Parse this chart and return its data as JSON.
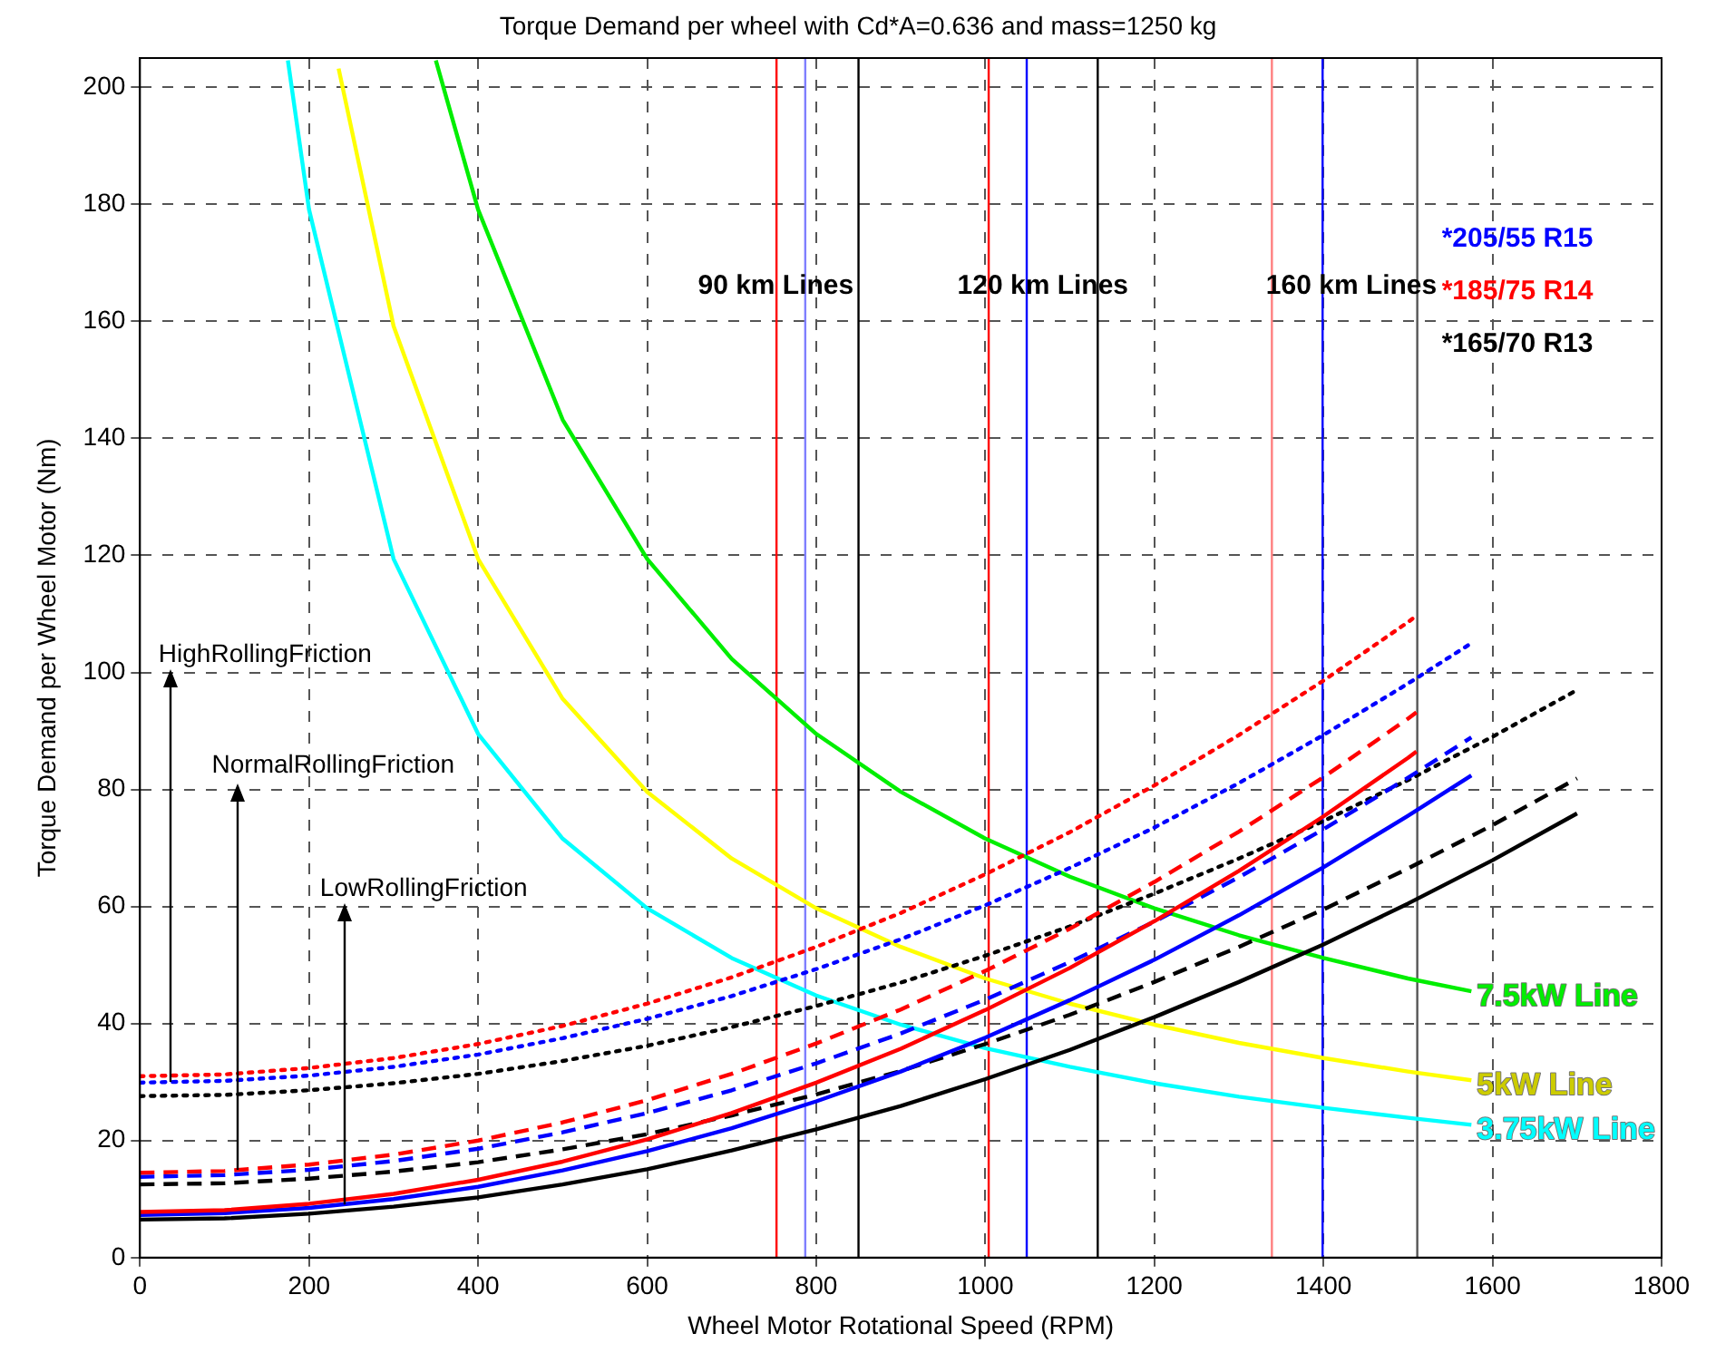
{
  "chart_data": {
    "type": "line",
    "title": "Torque Demand per wheel with Cd*A=0.636 and mass=1250 kg",
    "xlabel": "Wheel Motor Rotational Speed (RPM)",
    "ylabel": "Torque Demand per Wheel Motor (Nm)",
    "xlim": [
      0,
      1800
    ],
    "ylim": [
      0,
      205
    ],
    "xticks": [
      0,
      200,
      400,
      600,
      800,
      1000,
      1200,
      1400,
      1600,
      1800
    ],
    "yticks": [
      0,
      20,
      40,
      60,
      80,
      100,
      120,
      140,
      160,
      180,
      200
    ],
    "grid": true,
    "legend": false,
    "marker": "none",
    "series": [
      {
        "color": "#ff0000",
        "line_style": "dotted",
        "x": [
          0,
          100,
          200,
          300,
          400,
          500,
          600,
          700,
          800,
          900,
          1000,
          1100,
          1200,
          1300,
          1400,
          1500,
          1510
        ],
        "values": [
          31,
          31.3,
          32.4,
          34.1,
          36.5,
          39.6,
          43.4,
          47.9,
          53.1,
          58.9,
          65.5,
          72.7,
          80.7,
          89.3,
          98.6,
          108.6,
          109.7
        ]
      },
      {
        "color": "#ff0000",
        "line_style": "dashed",
        "x": [
          0,
          100,
          200,
          300,
          400,
          500,
          600,
          700,
          800,
          900,
          1000,
          1100,
          1200,
          1300,
          1400,
          1500,
          1510
        ],
        "values": [
          14.5,
          14.8,
          15.9,
          17.6,
          20,
          23.1,
          26.9,
          31.4,
          36.6,
          42.4,
          49,
          56.2,
          64.2,
          72.8,
          82.1,
          92.1,
          93.2
        ]
      },
      {
        "color": "#ff0000",
        "line_style": "solid",
        "x": [
          0,
          100,
          200,
          300,
          400,
          500,
          600,
          700,
          800,
          900,
          1000,
          1100,
          1200,
          1300,
          1400,
          1500,
          1510
        ],
        "values": [
          7.8,
          8.1,
          9.2,
          10.9,
          13.3,
          16.4,
          20.2,
          24.7,
          29.9,
          35.7,
          42.3,
          49.5,
          57.5,
          66.1,
          75.4,
          85.4,
          86.5
        ]
      },
      {
        "color": "#0000ff",
        "line_style": "dotted",
        "x": [
          0,
          100,
          200,
          300,
          400,
          500,
          600,
          700,
          800,
          900,
          1000,
          1100,
          1200,
          1300,
          1400,
          1500,
          1575
        ],
        "values": [
          29.9,
          30.2,
          31.1,
          32.6,
          34.7,
          37.5,
          40.8,
          44.7,
          49.3,
          54.4,
          60.2,
          66.6,
          73.5,
          81.1,
          89.3,
          98.1,
          105
        ]
      },
      {
        "color": "#0000ff",
        "line_style": "dashed",
        "x": [
          0,
          100,
          200,
          300,
          400,
          500,
          600,
          700,
          800,
          900,
          1000,
          1100,
          1200,
          1300,
          1400,
          1500,
          1575
        ],
        "values": [
          13.8,
          14.1,
          15,
          16.5,
          18.6,
          21.4,
          24.7,
          28.6,
          33.2,
          38.3,
          44.1,
          50.5,
          57.4,
          65,
          73.2,
          82,
          88.9
        ]
      },
      {
        "color": "#0000ff",
        "line_style": "solid",
        "x": [
          0,
          100,
          200,
          300,
          400,
          500,
          600,
          700,
          800,
          900,
          1000,
          1100,
          1200,
          1300,
          1400,
          1500,
          1575
        ],
        "values": [
          7.3,
          7.6,
          8.5,
          10,
          12.1,
          14.9,
          18.2,
          22.1,
          26.7,
          31.8,
          37.6,
          44,
          50.9,
          58.5,
          66.7,
          75.5,
          82.4
        ]
      },
      {
        "color": "#000000",
        "line_style": "dotted",
        "x": [
          0,
          100,
          200,
          300,
          400,
          500,
          600,
          700,
          800,
          900,
          1000,
          1100,
          1200,
          1300,
          1400,
          1500,
          1600,
          1700
        ],
        "values": [
          27.6,
          27.8,
          28.6,
          29.8,
          31.4,
          33.6,
          36.2,
          39.4,
          43,
          47,
          51.6,
          56.6,
          62.2,
          68.2,
          74.6,
          81.6,
          89,
          97
        ]
      },
      {
        "color": "#000000",
        "line_style": "dashed",
        "x": [
          0,
          100,
          200,
          300,
          400,
          500,
          600,
          700,
          800,
          900,
          1000,
          1100,
          1200,
          1300,
          1400,
          1500,
          1600,
          1700
        ],
        "values": [
          12.5,
          12.7,
          13.5,
          14.7,
          16.3,
          18.5,
          21.1,
          24.3,
          27.9,
          31.9,
          36.5,
          41.5,
          47.1,
          53.1,
          59.5,
          66.5,
          73.9,
          81.9
        ]
      },
      {
        "color": "#000000",
        "line_style": "solid",
        "x": [
          0,
          100,
          200,
          300,
          400,
          500,
          600,
          700,
          800,
          900,
          1000,
          1100,
          1200,
          1300,
          1400,
          1500,
          1600,
          1700
        ],
        "values": [
          6.5,
          6.7,
          7.5,
          8.7,
          10.3,
          12.5,
          15.1,
          18.3,
          21.9,
          25.9,
          30.5,
          35.5,
          41.1,
          47.1,
          53.5,
          60.5,
          67.9,
          75.9
        ]
      },
      {
        "name": "7.5kW Line",
        "color": "#00ee00",
        "line_style": "solid",
        "x": [
          350,
          400,
          500,
          600,
          700,
          800,
          900,
          1000,
          1100,
          1200,
          1300,
          1400,
          1500,
          1575
        ],
        "values": [
          204.6,
          179.1,
          143.2,
          119.4,
          102.3,
          89.5,
          79.6,
          71.6,
          65.1,
          59.7,
          55.1,
          51.2,
          47.7,
          45.5
        ]
      },
      {
        "name": "5kW Line",
        "color": "#ffff00",
        "line_style": "solid",
        "x": [
          235,
          300,
          400,
          500,
          600,
          700,
          800,
          900,
          1000,
          1100,
          1200,
          1300,
          1400,
          1500,
          1575
        ],
        "values": [
          203.2,
          159.2,
          119.4,
          95.5,
          79.6,
          68.2,
          59.7,
          53.1,
          47.7,
          43.4,
          39.8,
          36.7,
          34.1,
          31.8,
          30.3
        ]
      },
      {
        "name": "3.75kW Line",
        "color": "#00ffff",
        "line_style": "solid",
        "x": [
          175,
          200,
          300,
          400,
          500,
          600,
          700,
          800,
          900,
          1000,
          1100,
          1200,
          1300,
          1400,
          1500,
          1575
        ],
        "values": [
          204.6,
          179.1,
          119.4,
          89.5,
          71.6,
          59.7,
          51.2,
          44.8,
          39.8,
          35.8,
          32.6,
          29.8,
          27.5,
          25.6,
          23.9,
          22.7
        ]
      }
    ],
    "ref_lines": [
      {
        "axis": "x",
        "value": 753,
        "color": "#ff0000"
      },
      {
        "axis": "x",
        "value": 787,
        "color": "#7f7fff"
      },
      {
        "axis": "x",
        "value": 850,
        "color": "#000000"
      },
      {
        "axis": "x",
        "value": 1004,
        "color": "#ff0000"
      },
      {
        "axis": "x",
        "value": 1049,
        "color": "#0000ff"
      },
      {
        "axis": "x",
        "value": 1133,
        "color": "#000000"
      },
      {
        "axis": "x",
        "value": 1339,
        "color": "#ff7f7f"
      },
      {
        "axis": "x",
        "value": 1399,
        "color": "#0000ff"
      },
      {
        "axis": "x",
        "value": 1511,
        "color": "#555555"
      }
    ],
    "annotations": [
      "90 km Lines",
      "120 km Lines",
      "160 km Lines",
      "*205/55 R15",
      "*185/75 R14",
      "*165/70 R13",
      {
        "text": "HighRollingFriction",
        "x": 37,
        "y": 30
      },
      {
        "text": "NormalRollingFriction",
        "x": 115,
        "y": 15
      },
      {
        "text": "LowRollingFriction",
        "x": 243,
        "y": 9
      }
    ]
  }
}
